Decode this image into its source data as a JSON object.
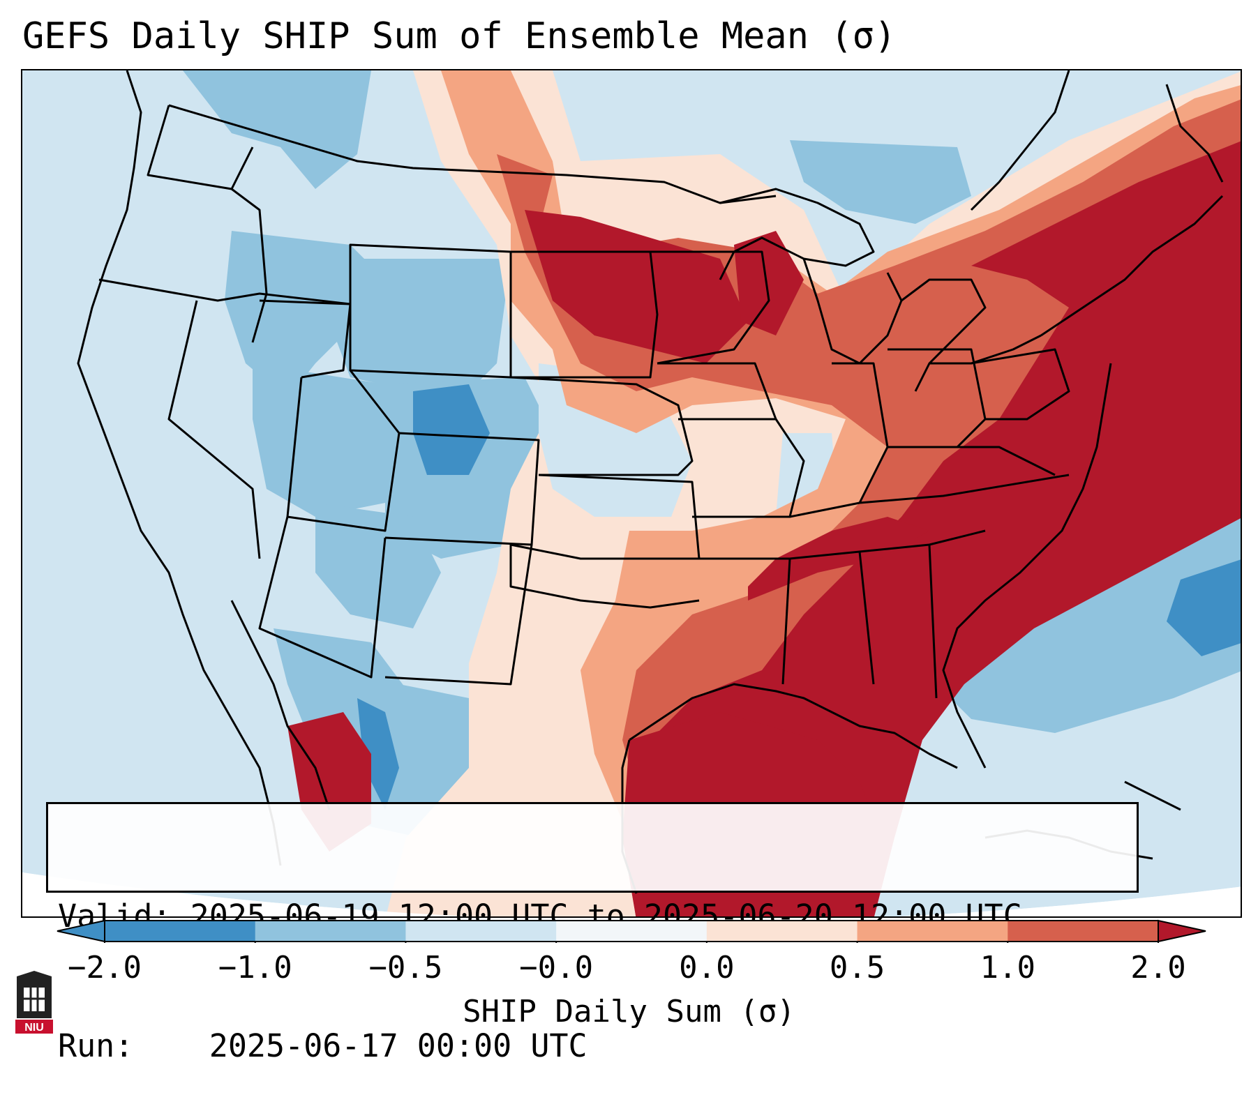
{
  "title": "GEFS Daily SHIP Sum of Ensemble Mean (σ)",
  "info": {
    "valid_label": "Valid:",
    "valid_value": "2025-06-19 12:00 UTC to 2025-06-20 12:00 UTC",
    "run_label": "Run:",
    "run_value": "2025-06-17 00:00 UTC"
  },
  "colorbar": {
    "label": "SHIP Daily Sum (σ)",
    "ticks": [
      "−2.0",
      "−1.0",
      "−0.5",
      "−0.0",
      "0.0",
      "0.5",
      "1.0",
      "2.0"
    ],
    "extend": "both",
    "colors": [
      "#3f8fc5",
      "#90c3de",
      "#d0e5f1",
      "#f2f6f9",
      "#fbe3d5",
      "#f4a582",
      "#d6604d",
      "#b2182b"
    ]
  },
  "logo": {
    "text": "NIU"
  },
  "colors": {
    "deep_blue": "#3f8fc5",
    "mid_blue": "#90c3de",
    "light_blue": "#d0e5f1",
    "light_red": "#fbe3d5",
    "mid_red": "#f4a582",
    "red": "#d6604d",
    "dark_red": "#b2182b"
  }
}
